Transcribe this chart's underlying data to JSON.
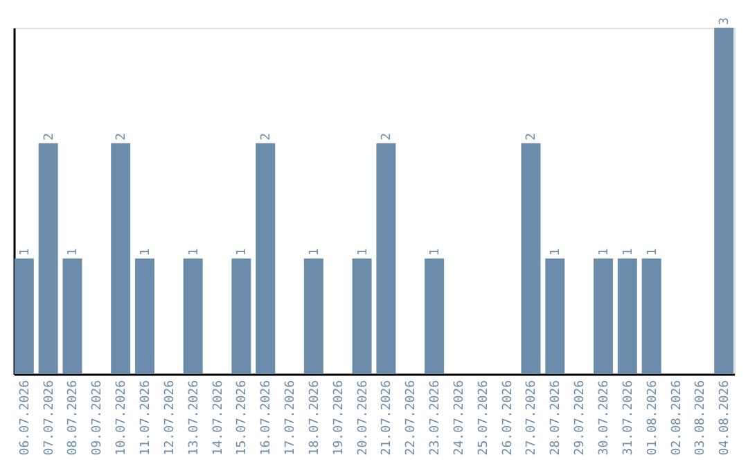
{
  "chart_data": {
    "type": "bar",
    "categories": [
      "06.07.2026",
      "07.07.2026",
      "08.07.2026",
      "09.07.2026",
      "10.07.2026",
      "11.07.2026",
      "12.07.2026",
      "13.07.2026",
      "14.07.2026",
      "15.07.2026",
      "16.07.2026",
      "17.07.2026",
      "18.07.2026",
      "19.07.2026",
      "20.07.2026",
      "21.07.2026",
      "22.07.2026",
      "23.07.2026",
      "24.07.2026",
      "25.07.2026",
      "26.07.2026",
      "27.07.2026",
      "28.07.2026",
      "29.07.2026",
      "30.07.2026",
      "31.07.2026",
      "01.08.2026",
      "02.08.2026",
      "03.08.2026",
      "04.08.2026"
    ],
    "values": [
      1,
      2,
      1,
      0,
      2,
      1,
      0,
      1,
      0,
      1,
      2,
      0,
      1,
      0,
      1,
      2,
      0,
      1,
      0,
      0,
      0,
      2,
      1,
      0,
      1,
      1,
      1,
      0,
      0,
      3
    ],
    "value_labels": [
      "1",
      "2",
      "1",
      null,
      "2",
      "1",
      null,
      "1",
      null,
      "1",
      "2",
      null,
      "1",
      null,
      "1",
      "2",
      null,
      "1",
      null,
      null,
      null,
      "2",
      "1",
      null,
      "1",
      "1",
      "1",
      null,
      null,
      "3"
    ],
    "color": "#6b8caa",
    "grid": false,
    "tick_labels": "x"
  }
}
